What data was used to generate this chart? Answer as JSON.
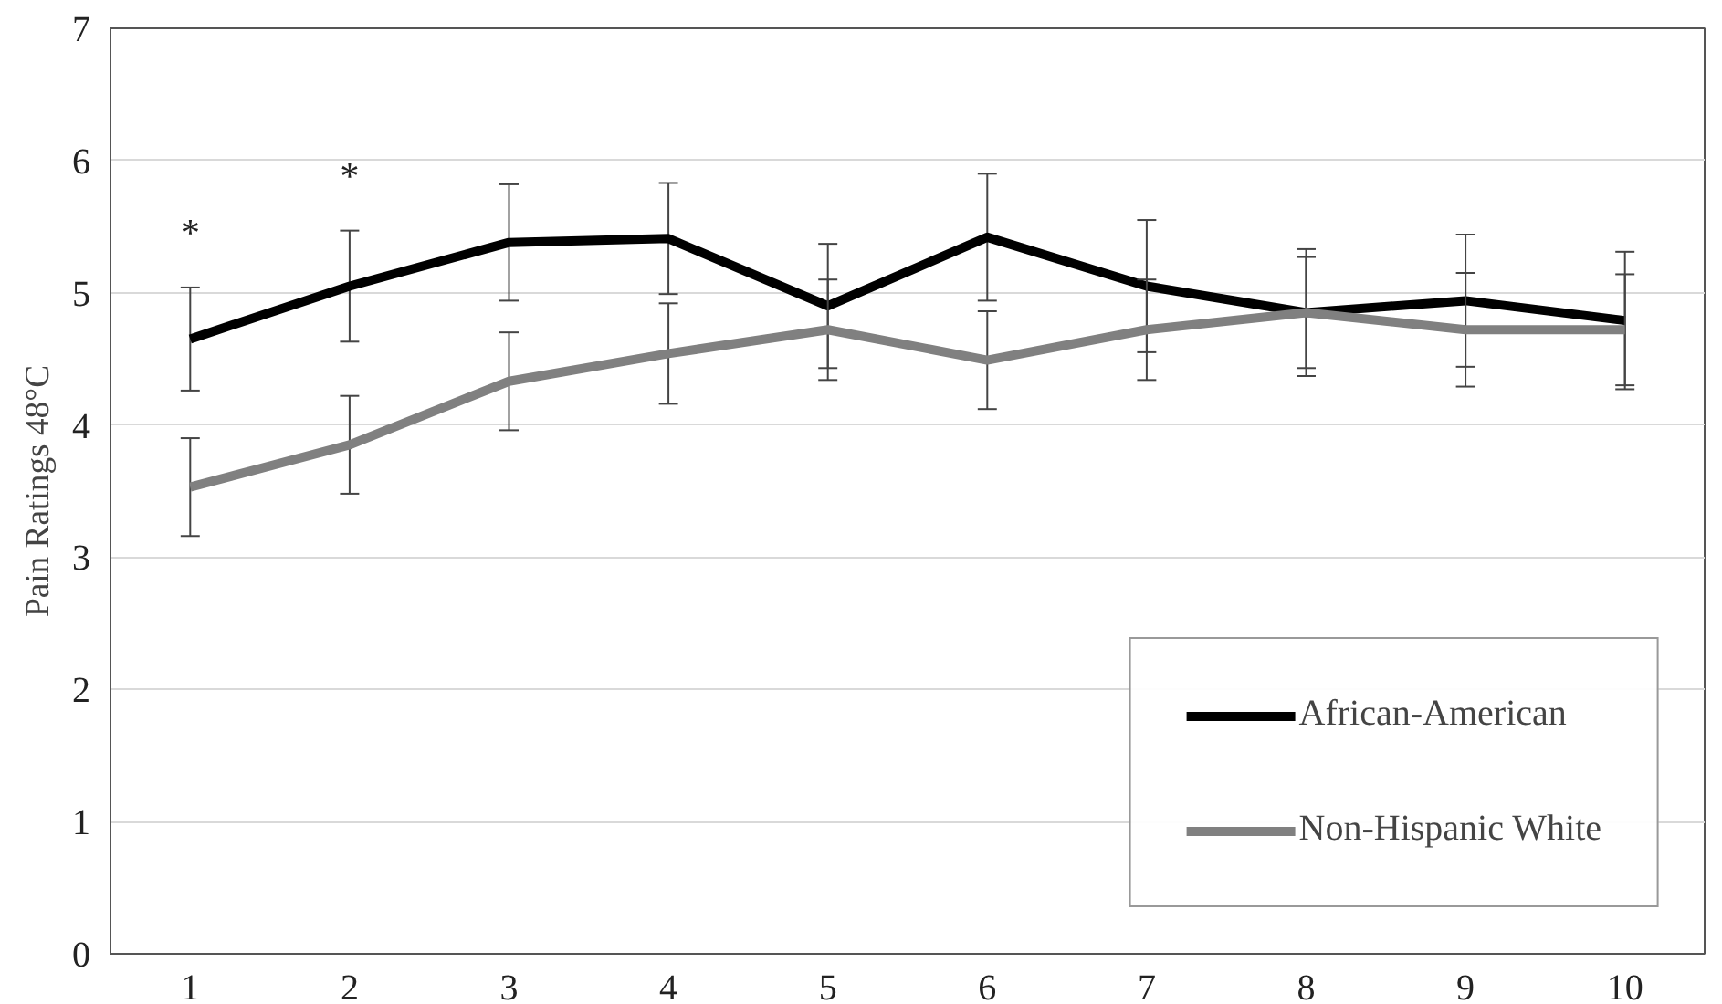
{
  "chart_data": {
    "type": "line",
    "ylabel": "Pain Ratings 48°C",
    "categories": [
      "1",
      "2",
      "3",
      "4",
      "5",
      "6",
      "7",
      "8",
      "9",
      "10"
    ],
    "ylim": [
      0,
      7
    ],
    "yticks": [
      0,
      1,
      2,
      3,
      4,
      5,
      6,
      7
    ],
    "grid": "y",
    "legend": "bottom right",
    "marker": "none",
    "line_style": "solid",
    "series": [
      {
        "name": "African-American",
        "color": "#000000",
        "values": [
          4.65,
          5.05,
          5.38,
          5.41,
          4.9,
          5.42,
          5.05,
          4.85,
          4.94,
          4.79
        ],
        "errors": [
          0.39,
          0.42,
          0.44,
          0.42,
          0.47,
          0.48,
          0.5,
          0.48,
          0.5,
          0.52
        ]
      },
      {
        "name": "Non-Hispanic White",
        "color": "#808080",
        "values": [
          3.53,
          3.85,
          4.33,
          4.54,
          4.72,
          4.49,
          4.72,
          4.85,
          4.72,
          4.72
        ],
        "errors": [
          0.37,
          0.37,
          0.37,
          0.38,
          0.38,
          0.37,
          0.38,
          0.42,
          0.43,
          0.42
        ]
      }
    ],
    "annotations": [
      "*",
      "*"
    ]
  }
}
